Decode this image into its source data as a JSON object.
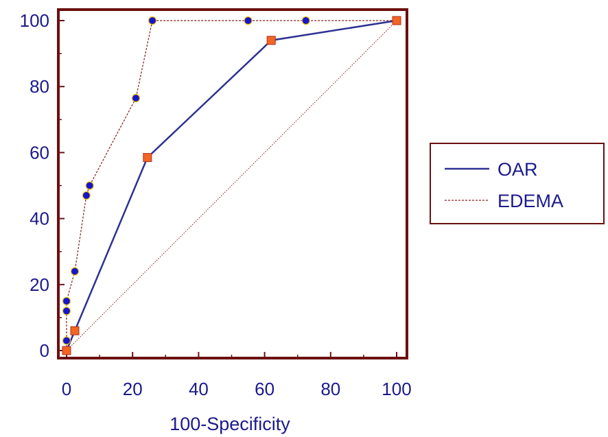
{
  "chart_data": {
    "type": "line",
    "title": "",
    "xlabel": "100-Specificity",
    "ylabel": "",
    "xlim": [
      0,
      100
    ],
    "ylim": [
      0,
      100
    ],
    "xticks": [
      0,
      20,
      40,
      60,
      80,
      100
    ],
    "yticks": [
      0,
      20,
      40,
      60,
      80,
      100
    ],
    "legend_position": "right",
    "grid": false,
    "series": [
      {
        "name": "OAR",
        "style": "solid",
        "color": "#2e3192",
        "marker": "square",
        "marker_color": "#f26522",
        "points": [
          [
            0,
            0
          ],
          [
            2.5,
            6
          ],
          [
            24.5,
            58.5
          ],
          [
            62,
            94
          ],
          [
            100,
            100
          ]
        ]
      },
      {
        "name": "EDEMA",
        "style": "dashed",
        "color": "#8b1a1a",
        "marker": "circle",
        "marker_color": "#1414d2",
        "marker_edge": "#f2c200",
        "points": [
          [
            0,
            0
          ],
          [
            0,
            3
          ],
          [
            0,
            12
          ],
          [
            0,
            15
          ],
          [
            2.5,
            24
          ],
          [
            6,
            47
          ],
          [
            7,
            50
          ],
          [
            21,
            76.5
          ],
          [
            26,
            100
          ],
          [
            55,
            100
          ],
          [
            72.5,
            100
          ],
          [
            100,
            100
          ]
        ]
      }
    ],
    "reference_line": {
      "from": [
        0,
        0
      ],
      "to": [
        100,
        100
      ],
      "style": "dotted"
    }
  }
}
